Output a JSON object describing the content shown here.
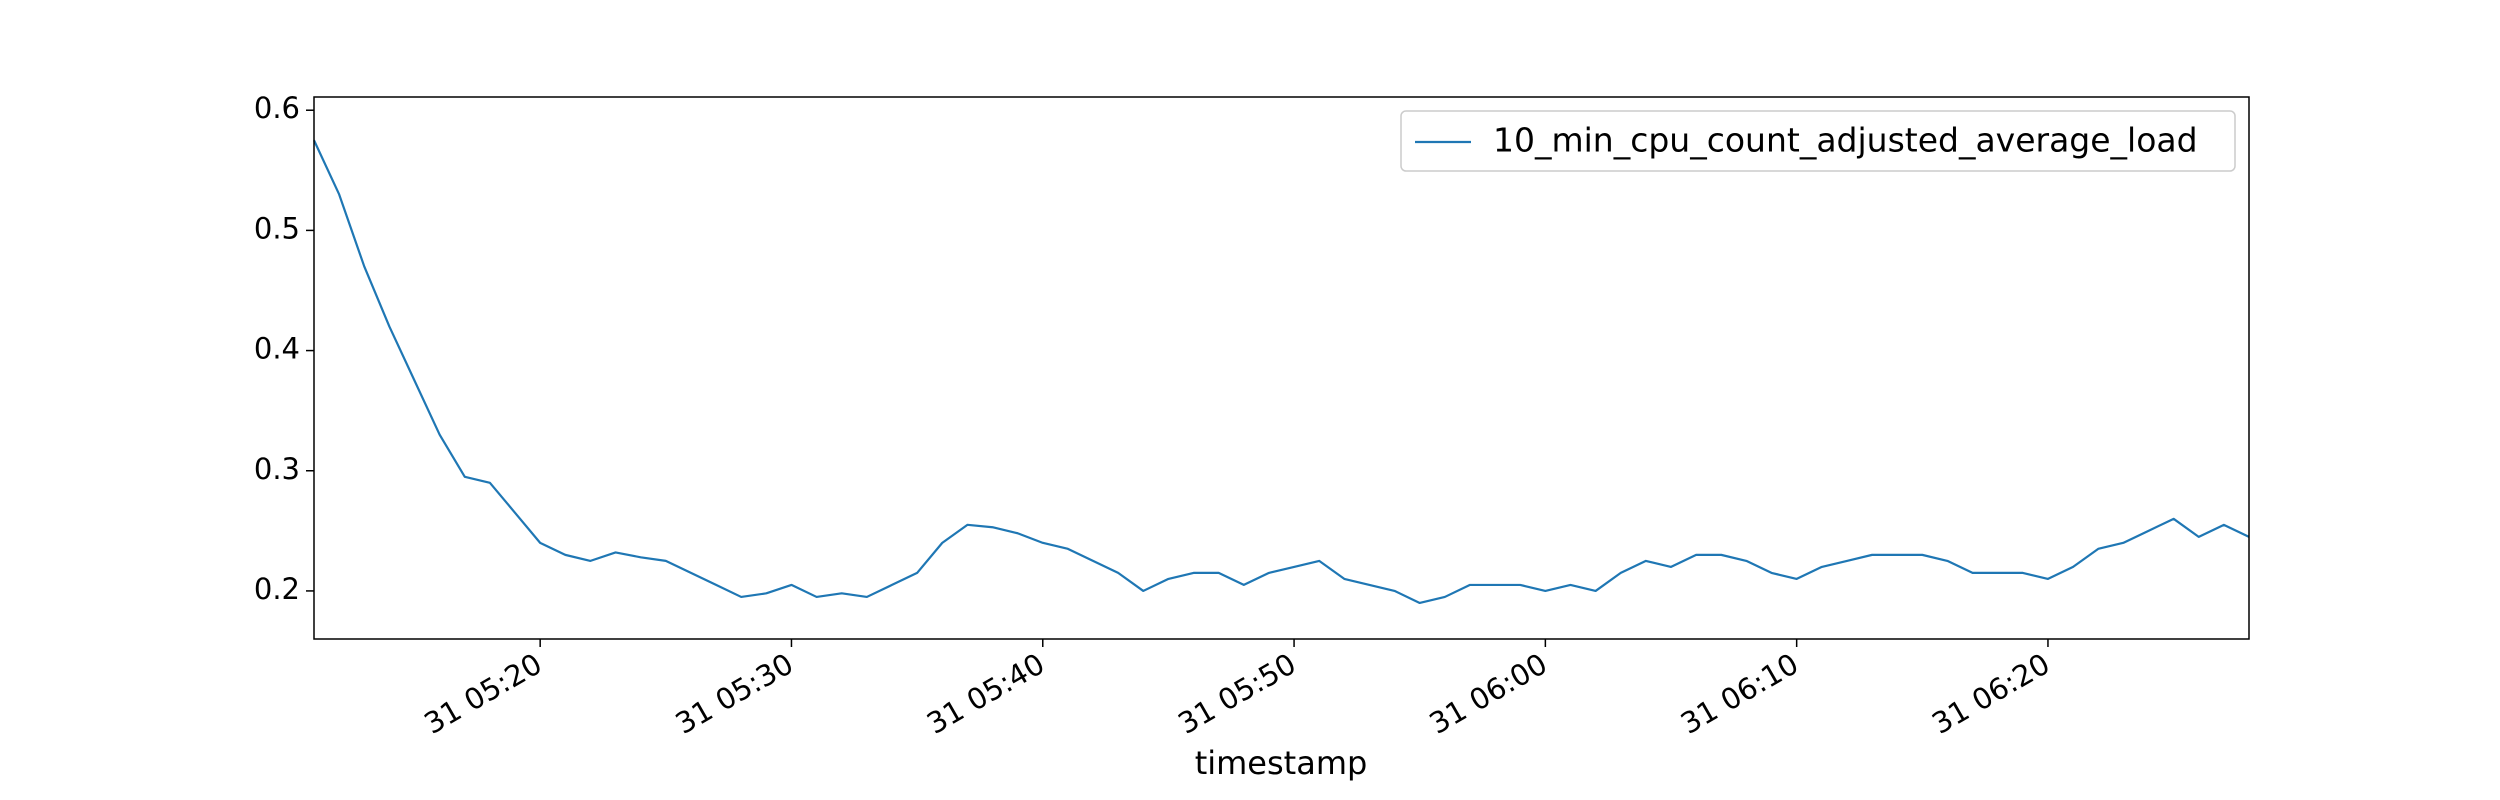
{
  "chart_data": {
    "type": "line",
    "x_label": "timestamp",
    "x": [
      "31 05:11",
      "31 05:12",
      "31 05:13",
      "31 05:14",
      "31 05:15",
      "31 05:16",
      "31 05:17",
      "31 05:18",
      "31 05:19",
      "31 05:20",
      "31 05:21",
      "31 05:22",
      "31 05:23",
      "31 05:24",
      "31 05:25",
      "31 05:26",
      "31 05:27",
      "31 05:28",
      "31 05:29",
      "31 05:30",
      "31 05:31",
      "31 05:32",
      "31 05:33",
      "31 05:34",
      "31 05:35",
      "31 05:36",
      "31 05:37",
      "31 05:38",
      "31 05:39",
      "31 05:40",
      "31 05:41",
      "31 05:42",
      "31 05:43",
      "31 05:44",
      "31 05:45",
      "31 05:46",
      "31 05:47",
      "31 05:48",
      "31 05:49",
      "31 05:50",
      "31 05:51",
      "31 05:52",
      "31 05:53",
      "31 05:54",
      "31 05:55",
      "31 05:56",
      "31 05:57",
      "31 05:58",
      "31 05:59",
      "31 06:00",
      "31 06:01",
      "31 06:02",
      "31 06:03",
      "31 06:04",
      "31 06:05",
      "31 06:06",
      "31 06:07",
      "31 06:08",
      "31 06:09",
      "31 06:10",
      "31 06:11",
      "31 06:12",
      "31 06:13",
      "31 06:14",
      "31 06:15",
      "31 06:16",
      "31 06:17",
      "31 06:18",
      "31 06:19",
      "31 06:20",
      "31 06:21",
      "31 06:22",
      "31 06:23",
      "31 06:24",
      "31 06:25",
      "31 06:26",
      "31 06:27",
      "31 06:28"
    ],
    "series": [
      {
        "name": "10_min_cpu_count_adjusted_average_load",
        "color": "#1f77b4",
        "values": [
          0.575,
          0.53,
          0.47,
          0.42,
          0.375,
          0.33,
          0.295,
          0.29,
          0.265,
          0.24,
          0.23,
          0.225,
          0.232,
          0.228,
          0.225,
          0.215,
          0.205,
          0.195,
          0.198,
          0.205,
          0.195,
          0.198,
          0.195,
          0.205,
          0.215,
          0.24,
          0.255,
          0.253,
          0.248,
          0.24,
          0.235,
          0.225,
          0.215,
          0.2,
          0.21,
          0.215,
          0.215,
          0.205,
          0.215,
          0.22,
          0.225,
          0.21,
          0.205,
          0.2,
          0.19,
          0.195,
          0.205,
          0.205,
          0.205,
          0.2,
          0.205,
          0.2,
          0.215,
          0.225,
          0.22,
          0.23,
          0.23,
          0.225,
          0.215,
          0.21,
          0.22,
          0.225,
          0.23,
          0.23,
          0.23,
          0.225,
          0.215,
          0.215,
          0.215,
          0.21,
          0.22,
          0.235,
          0.24,
          0.25,
          0.26,
          0.245,
          0.255,
          0.245
        ]
      }
    ],
    "xlim": [
      "31 05:11",
      "31 06:28"
    ],
    "xticks": [
      "31 05:20",
      "31 05:30",
      "31 05:40",
      "31 05:50",
      "31 06:00",
      "31 06:10",
      "31 06:20"
    ],
    "ylim": [
      0.16,
      0.611
    ],
    "yticks": [
      0.2,
      0.3,
      0.4,
      0.5,
      0.6
    ],
    "legend": "upper right"
  }
}
